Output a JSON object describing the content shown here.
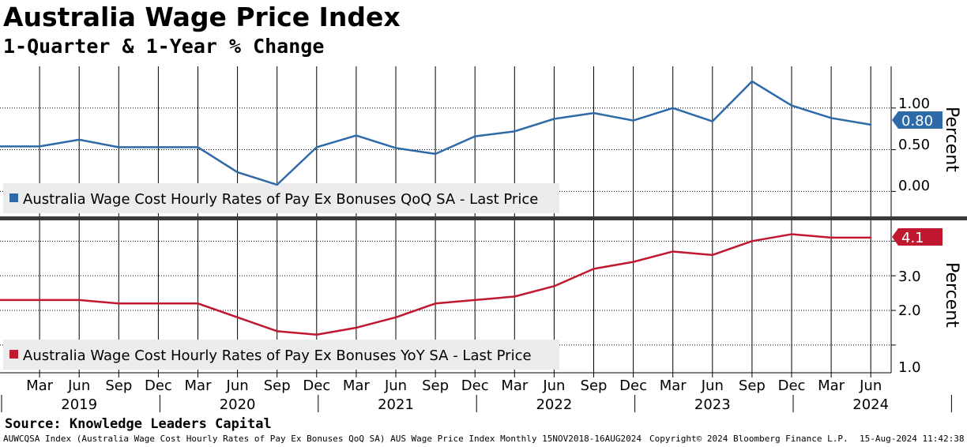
{
  "header": {
    "title": "Australia Wage Price Index",
    "subtitle": "1-Quarter & 1-Year % Change"
  },
  "colors": {
    "qoq": "#2e6aa8",
    "yoy": "#c0182f",
    "grid": "#000000",
    "legend_bg": "#ececec"
  },
  "chart_data": [
    {
      "type": "line",
      "panel": "top",
      "series": [
        {
          "name": "Australia Wage Cost Hourly Rates of Pay Ex Bonuses QoQ SA - Last Price",
          "values": [
            0.54,
            0.54,
            0.62,
            0.53,
            0.53,
            0.53,
            0.23,
            0.08,
            0.53,
            0.67,
            0.52,
            0.45,
            0.66,
            0.72,
            0.87,
            0.94,
            0.85,
            1.0,
            0.84,
            1.32,
            1.03,
            0.88,
            0.8
          ]
        }
      ],
      "ylabel": "Percent",
      "yticks": [
        "1.00",
        "0.50",
        "0.00"
      ],
      "ylim": [
        -0.3,
        1.5
      ],
      "last_value_label": "0.80"
    },
    {
      "type": "line",
      "panel": "bottom",
      "series": [
        {
          "name": "Australia Wage Cost Hourly Rates of Pay Ex Bonuses YoY SA - Last Price",
          "values": [
            2.3,
            2.3,
            2.3,
            2.2,
            2.2,
            2.2,
            1.8,
            1.4,
            1.3,
            1.5,
            1.8,
            2.2,
            2.3,
            2.4,
            2.7,
            3.2,
            3.4,
            3.7,
            3.6,
            4.0,
            4.2,
            4.1,
            4.1
          ]
        }
      ],
      "ylabel": "Percent",
      "yticks": [
        "3.0",
        "2.0",
        "1.0"
      ],
      "ylim": [
        0.2,
        4.6
      ],
      "last_value_label": "4.1"
    }
  ],
  "x_axis": {
    "month_labels": [
      "Mar",
      "Jun",
      "Sep",
      "Dec",
      "Mar",
      "Jun",
      "Sep",
      "Dec",
      "Mar",
      "Jun",
      "Sep",
      "Dec",
      "Mar",
      "Jun",
      "Sep",
      "Dec",
      "Mar",
      "Jun",
      "Sep",
      "Dec",
      "Mar",
      "Jun"
    ],
    "years": [
      "2019",
      "2020",
      "2021",
      "2022",
      "2023",
      "2024"
    ]
  },
  "source": "Source: Knowledge Leaders Capital",
  "footer": {
    "left": "AUWCQSA Index (Australia Wage Cost Hourly Rates of Pay Ex Bonuses QoQ SA) AUS Wage Price Index  Monthly 15NOV2018-16AUG2024",
    "middle": "Copyright© 2024 Bloomberg Finance L.P.",
    "right": "15-Aug-2024 11:42:38"
  }
}
